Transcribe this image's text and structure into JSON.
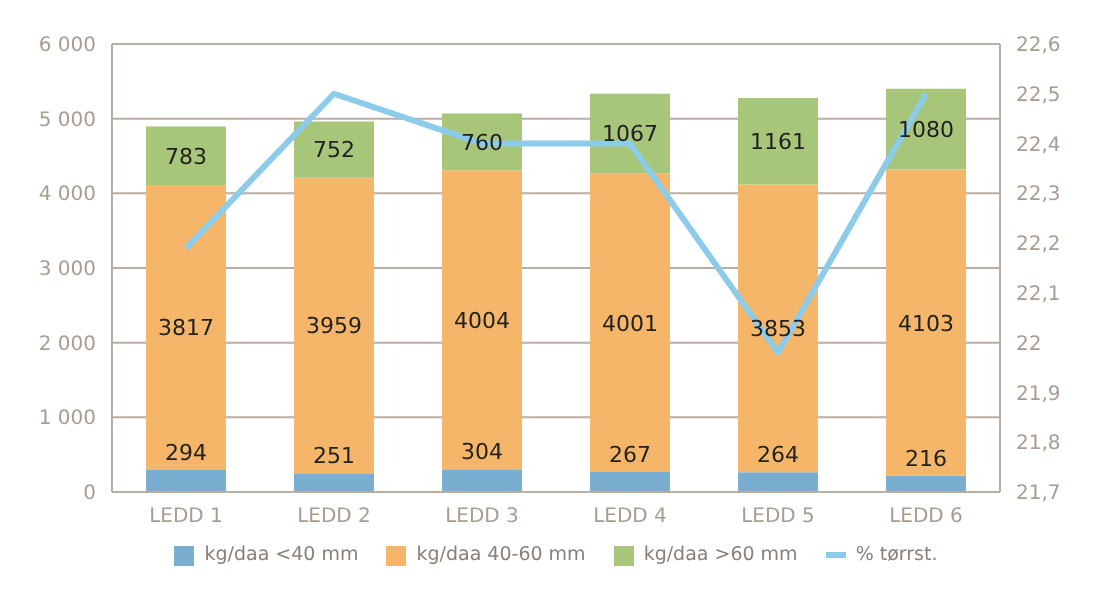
{
  "chart_data": {
    "type": "bar",
    "stacked": true,
    "categories": [
      "LEDD 1",
      "LEDD 2",
      "LEDD 3",
      "LEDD 4",
      "LEDD 5",
      "LEDD 6"
    ],
    "series": [
      {
        "name": "kg/daa <40 mm",
        "color": "#7aaed0",
        "values": [
          294,
          251,
          304,
          267,
          264,
          216
        ],
        "value_labels": [
          "294",
          "251",
          "304",
          "267",
          "264",
          "216"
        ]
      },
      {
        "name": "kg/daa 40-60 mm",
        "color": "#f6b66a",
        "values": [
          3817,
          3959,
          4004,
          4001,
          3853,
          4103
        ],
        "value_labels": [
          "3817",
          "3959",
          "4004",
          "4001",
          "3853",
          "4103"
        ]
      },
      {
        "name": "kg/daa >60 mm",
        "color": "#a8c679",
        "values": [
          783,
          752,
          760,
          1067,
          1161,
          1080
        ],
        "value_labels": [
          "783",
          "752",
          "760",
          "1067",
          "1161",
          "1080"
        ]
      },
      {
        "name": "% tørrst.",
        "type": "line",
        "axis": "y2",
        "color": "#8ccbe9",
        "values": [
          22.19,
          22.5,
          22.4,
          22.4,
          21.98,
          22.5
        ]
      }
    ],
    "ylim": [
      0,
      6000
    ],
    "yticks": [
      {
        "value": 0,
        "label": "0"
      },
      {
        "value": 1000,
        "label": "1 000"
      },
      {
        "value": 2000,
        "label": "2 000"
      },
      {
        "value": 3000,
        "label": "3 000"
      },
      {
        "value": 4000,
        "label": "4 000"
      },
      {
        "value": 5000,
        "label": "5 000"
      },
      {
        "value": 6000,
        "label": "6 000"
      }
    ],
    "y2lim": [
      21.7,
      22.6
    ],
    "y2ticks": [
      {
        "value": 21.7,
        "label": "21,7"
      },
      {
        "value": 21.8,
        "label": "21,8"
      },
      {
        "value": 21.9,
        "label": "21,9"
      },
      {
        "value": 22,
        "label": "22"
      },
      {
        "value": 22.1,
        "label": "22,1"
      },
      {
        "value": 22.2,
        "label": "22,2"
      },
      {
        "value": 22.3,
        "label": "22,3"
      },
      {
        "value": 22.4,
        "label": "22,4"
      },
      {
        "value": 22.5,
        "label": "22,5"
      },
      {
        "value": 22.6,
        "label": "22,6"
      }
    ],
    "grid": "y",
    "legend": "bottom",
    "marker": "none",
    "line_style": "solid"
  }
}
